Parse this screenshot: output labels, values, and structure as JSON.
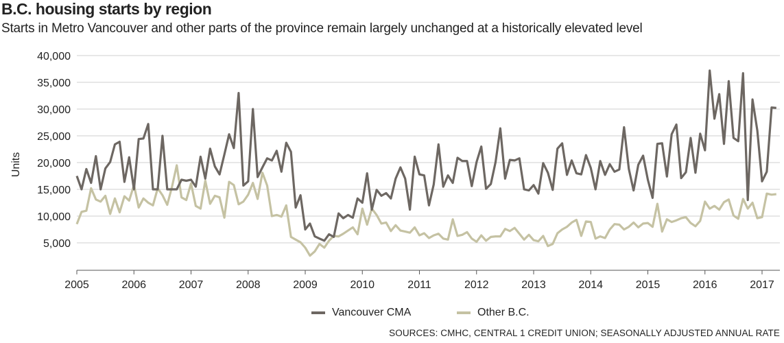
{
  "chart_data": {
    "type": "line",
    "title": "B.C. housing starts by region",
    "subtitle": "Starts in Metro Vancouver and other parts of the province remain largely unchanged at a historically elevated level",
    "ylabel": "Units",
    "xlabel": "",
    "source": "SOURCES: CMHC, CENTRAL 1 CREDIT UNION; SEASONALLY ADJUSTED ANNUAL RATE",
    "ylim": [
      0,
      40000
    ],
    "yticks": [
      5000,
      10000,
      15000,
      20000,
      25000,
      30000,
      35000,
      40000
    ],
    "ytick_labels": [
      "5,000",
      "10,000",
      "15,000",
      "20,000",
      "25,000",
      "30,000",
      "35,000",
      "40,000"
    ],
    "xticks": [
      "2005",
      "2006",
      "2007",
      "2008",
      "2009",
      "2010",
      "2011",
      "2012",
      "2013",
      "2014",
      "2015",
      "2016",
      "2017"
    ],
    "x_start": "2005-01",
    "x_interval": "month",
    "grid": true,
    "legend_position": "bottom",
    "series": [
      {
        "name": "Vancouver CMA",
        "color": "#6d6762",
        "values": [
          17500,
          15000,
          18800,
          16200,
          21200,
          15000,
          18900,
          20100,
          23400,
          23900,
          16400,
          21000,
          15000,
          24400,
          24500,
          27200,
          15000,
          15000,
          25000,
          15000,
          15000,
          15000,
          16800,
          16600,
          16800,
          15500,
          21100,
          17000,
          22600,
          19300,
          17800,
          21500,
          25300,
          22700,
          33000,
          15700,
          16500,
          30000,
          17300,
          19100,
          20800,
          20400,
          22200,
          18300,
          23700,
          22000,
          11600,
          13900,
          7500,
          8600,
          6200,
          5800,
          5400,
          6600,
          6100,
          10500,
          9600,
          10200,
          9700,
          13300,
          12500,
          18000,
          11200,
          14900,
          13800,
          14300,
          13300,
          17000,
          19100,
          17000,
          11200,
          21100,
          17800,
          17600,
          12000,
          15900,
          23400,
          15500,
          17600,
          16200,
          20900,
          20300,
          20300,
          15600,
          20100,
          23000,
          15100,
          16000,
          20100,
          26400,
          17000,
          20500,
          20400,
          20800,
          15000,
          14800,
          15800,
          14200,
          19900,
          18100,
          14900,
          22600,
          23600,
          17700,
          20400,
          18000,
          17800,
          21400,
          19000,
          15000,
          20300,
          17700,
          19700,
          18300,
          18700,
          26600,
          18800,
          14800,
          19600,
          21300,
          16800,
          13400,
          23500,
          23600,
          17400,
          25300,
          27100,
          17100,
          18200,
          24600,
          18100,
          25400,
          22300,
          37200,
          28200,
          32800,
          23500,
          35200,
          24600,
          24000,
          36700,
          13000,
          31800,
          26000,
          16500,
          18300,
          30300,
          30200
        ]
      },
      {
        "name": "Other B.C.",
        "color": "#c5c2a3",
        "values": [
          8500,
          10800,
          11000,
          15200,
          13100,
          12700,
          13800,
          10400,
          13300,
          10700,
          13700,
          12900,
          15800,
          11600,
          13300,
          12500,
          12000,
          15200,
          13900,
          12100,
          15500,
          19500,
          13500,
          13000,
          16100,
          11900,
          11400,
          16600,
          12300,
          13800,
          13500,
          9700,
          16400,
          15800,
          12200,
          12700,
          14000,
          16200,
          13200,
          18100,
          15700,
          10000,
          10200,
          9900,
          12000,
          6100,
          5600,
          5100,
          4100,
          2600,
          3400,
          4800,
          4100,
          5400,
          6300,
          6200,
          6700,
          7300,
          7900,
          6600,
          11400,
          8400,
          11400,
          10200,
          8600,
          8800,
          7200,
          8300,
          7300,
          7100,
          6900,
          7900,
          6400,
          6800,
          5900,
          6400,
          6700,
          5800,
          5600,
          9400,
          6300,
          6500,
          7000,
          5800,
          5200,
          6400,
          5400,
          6100,
          6200,
          6200,
          7600,
          7200,
          7800,
          6700,
          5600,
          6500,
          5500,
          5300,
          6300,
          4400,
          4800,
          6800,
          7500,
          8000,
          8800,
          9300,
          6300,
          9000,
          8900,
          5800,
          6200,
          5900,
          7500,
          8500,
          8400,
          7500,
          8000,
          8800,
          7900,
          8600,
          8700,
          8000,
          12300,
          7100,
          9400,
          8900,
          9200,
          9600,
          9800,
          8700,
          8100,
          9100,
          12700,
          11400,
          11900,
          11200,
          12600,
          13100,
          10100,
          9500,
          13200,
          11400,
          12500,
          9600,
          9800,
          14200,
          14000,
          14100
        ]
      }
    ]
  }
}
